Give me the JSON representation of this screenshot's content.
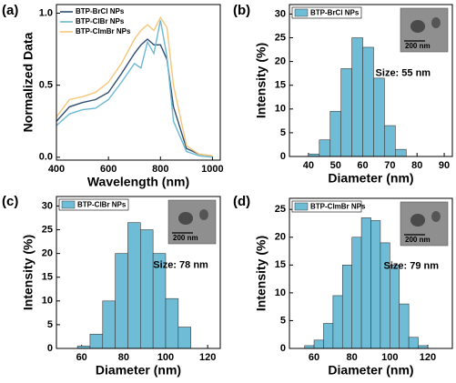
{
  "chart_data": [
    {
      "type": "line",
      "panel_label": "(a)",
      "x_label": "Wavelength (nm)",
      "y_label": "Normalized Data",
      "x": [
        400,
        450,
        500,
        550,
        600,
        650,
        700,
        725,
        750,
        775,
        800,
        825,
        850,
        900,
        950,
        1000
      ],
      "series": [
        {
          "name": "BTP-BrCl NPs",
          "color": "#2f4b6e",
          "values": [
            0.25,
            0.35,
            0.38,
            0.4,
            0.45,
            0.58,
            0.72,
            0.78,
            0.82,
            0.78,
            0.78,
            0.68,
            0.35,
            0.06,
            0.02,
            0.01
          ]
        },
        {
          "name": "BTP-ClBr NPs",
          "color": "#6cb9d2",
          "values": [
            0.22,
            0.3,
            0.33,
            0.34,
            0.4,
            0.52,
            0.65,
            0.62,
            0.8,
            0.72,
            0.95,
            0.7,
            0.25,
            0.04,
            0.01,
            0.0
          ]
        },
        {
          "name": "BTP-ClmBr NPs",
          "color": "#f6c679",
          "values": [
            0.28,
            0.4,
            0.42,
            0.45,
            0.52,
            0.65,
            0.82,
            0.88,
            0.92,
            0.88,
            0.97,
            0.9,
            0.5,
            0.08,
            0.02,
            0.01
          ]
        }
      ],
      "xlim": [
        400,
        1030
      ],
      "xticks": [
        400,
        600,
        800,
        1000
      ],
      "ylim": [
        -0.02,
        1.06
      ],
      "yticks": [
        {
          "value": 0,
          "label": "0.0"
        },
        {
          "value": 0.5,
          "label": "0.5"
        },
        {
          "value": 1,
          "label": "1.0"
        }
      ]
    },
    {
      "type": "histogram",
      "panel_label": "(b)",
      "x_label": "Diameter (nm)",
      "y_label": "Intensity (%)",
      "legend": "BTP-BrCl NPs",
      "annotation": "Size: 55 nm",
      "inset_scale": "200 nm",
      "color": "#6fbcd6",
      "bins": [
        40,
        44,
        48,
        52,
        56,
        60,
        64,
        68,
        72,
        76
      ],
      "values": [
        0.5,
        3.5,
        9.5,
        18.5,
        25,
        23,
        16.5,
        6.5,
        1.5
      ],
      "xlim": [
        33,
        93
      ],
      "xticks": [
        40,
        50,
        60,
        70,
        80,
        90
      ],
      "ylim": [
        0,
        32
      ],
      "yticks": [
        0,
        5,
        10,
        15,
        20,
        25,
        30
      ]
    },
    {
      "type": "histogram",
      "panel_label": "(c)",
      "x_label": "Diameter (nm)",
      "y_label": "Intensity (%)",
      "legend": "BTP-ClBr NPs",
      "annotation": "Size: 78 nm",
      "inset_scale": "200 nm",
      "color": "#6fbcd6",
      "bins": [
        58,
        64,
        70,
        76,
        82,
        88,
        94,
        100,
        106,
        112
      ],
      "values": [
        0.5,
        3,
        10,
        20,
        26.5,
        25,
        20,
        10.5,
        4.5
      ],
      "xlim": [
        48,
        126
      ],
      "xticks": [
        60,
        80,
        100,
        120
      ],
      "ylim": [
        0,
        32
      ],
      "yticks": [
        0,
        5,
        10,
        15,
        20,
        25,
        30
      ]
    },
    {
      "type": "histogram",
      "panel_label": "(d)",
      "x_label": "Diameter (nm)",
      "y_label": "Intensity (%)",
      "legend": "BTP-ClmBr NPs",
      "annotation": "Size: 79 nm",
      "inset_scale": "200 nm",
      "color": "#6fbcd6",
      "bins": [
        55,
        60,
        65,
        70,
        75,
        80,
        85,
        90,
        95,
        100,
        105,
        110,
        115,
        120
      ],
      "values": [
        0.5,
        1.5,
        4.5,
        9.5,
        15,
        20,
        23.5,
        23,
        19,
        15,
        8,
        2,
        0.5
      ],
      "xlim": [
        47,
        133
      ],
      "xticks": [
        60,
        80,
        100,
        120
      ],
      "ylim": [
        0,
        27
      ],
      "yticks": [
        0,
        5,
        10,
        15,
        20,
        25
      ]
    }
  ]
}
